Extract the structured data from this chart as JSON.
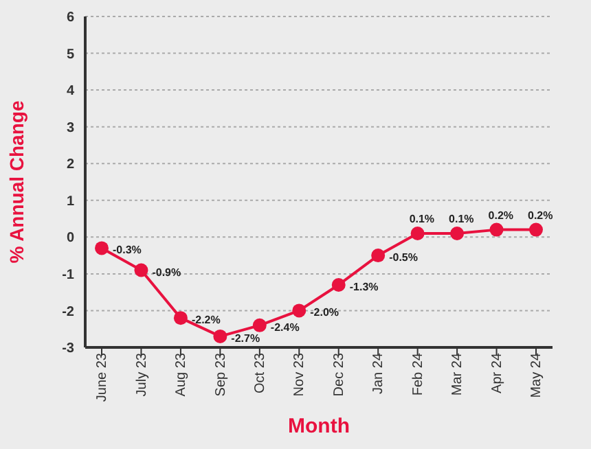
{
  "chart_data": {
    "type": "line",
    "xlabel": "Month",
    "ylabel": "% Annual Change",
    "categories": [
      "June 23",
      "July 23",
      "Aug 23",
      "Sep 23",
      "Oct 23",
      "Nov 23",
      "Dec 23",
      "Jan 24",
      "Feb 24",
      "Mar 24",
      "Apr 24",
      "May 24"
    ],
    "series": [
      {
        "color": "#e8123f",
        "values": [
          -0.3,
          -0.9,
          -2.2,
          -2.7,
          -2.4,
          -2.0,
          -1.3,
          -0.5,
          0.1,
          0.1,
          0.2,
          0.2
        ],
        "value_labels": [
          "-0.3%",
          "-0.9%",
          "-2.2%",
          "-2.7%",
          "-2.4%",
          "-2.0%",
          "-1.3%",
          "-0.5%",
          "0.1%",
          "0.1%",
          "0.2%",
          "0.2%"
        ]
      }
    ],
    "ylim": [
      -3,
      6
    ],
    "yticks": [
      -3,
      -2,
      -1,
      0,
      1,
      2,
      3,
      4,
      5,
      6
    ],
    "grid": "y",
    "marker": "circle",
    "line_style": "solid",
    "legend": false
  }
}
